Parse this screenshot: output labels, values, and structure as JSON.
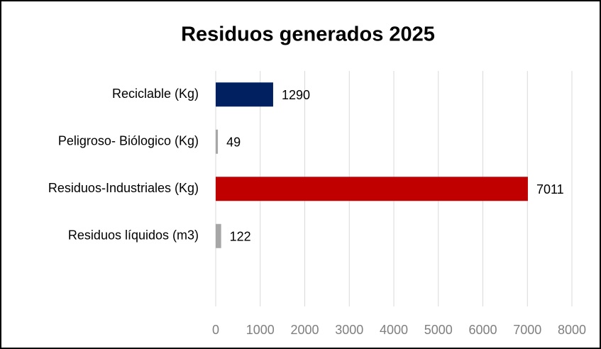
{
  "chart_data": {
    "type": "bar",
    "orientation": "horizontal",
    "title": "Residuos generados 2025",
    "categories": [
      "Reciclable (Kg)",
      "Peligroso- Biólogico (Kg)",
      "Residuos-Industriales (Kg)",
      "Residuos líquidos (m3)"
    ],
    "values": [
      1290,
      49,
      7011,
      122
    ],
    "colors": [
      "#002060",
      "#a6a6a6",
      "#c00000",
      "#a6a6a6"
    ],
    "xlim": [
      0,
      8000
    ],
    "xticks": [
      0,
      1000,
      2000,
      3000,
      4000,
      5000,
      6000,
      7000,
      8000
    ],
    "grid": true
  }
}
